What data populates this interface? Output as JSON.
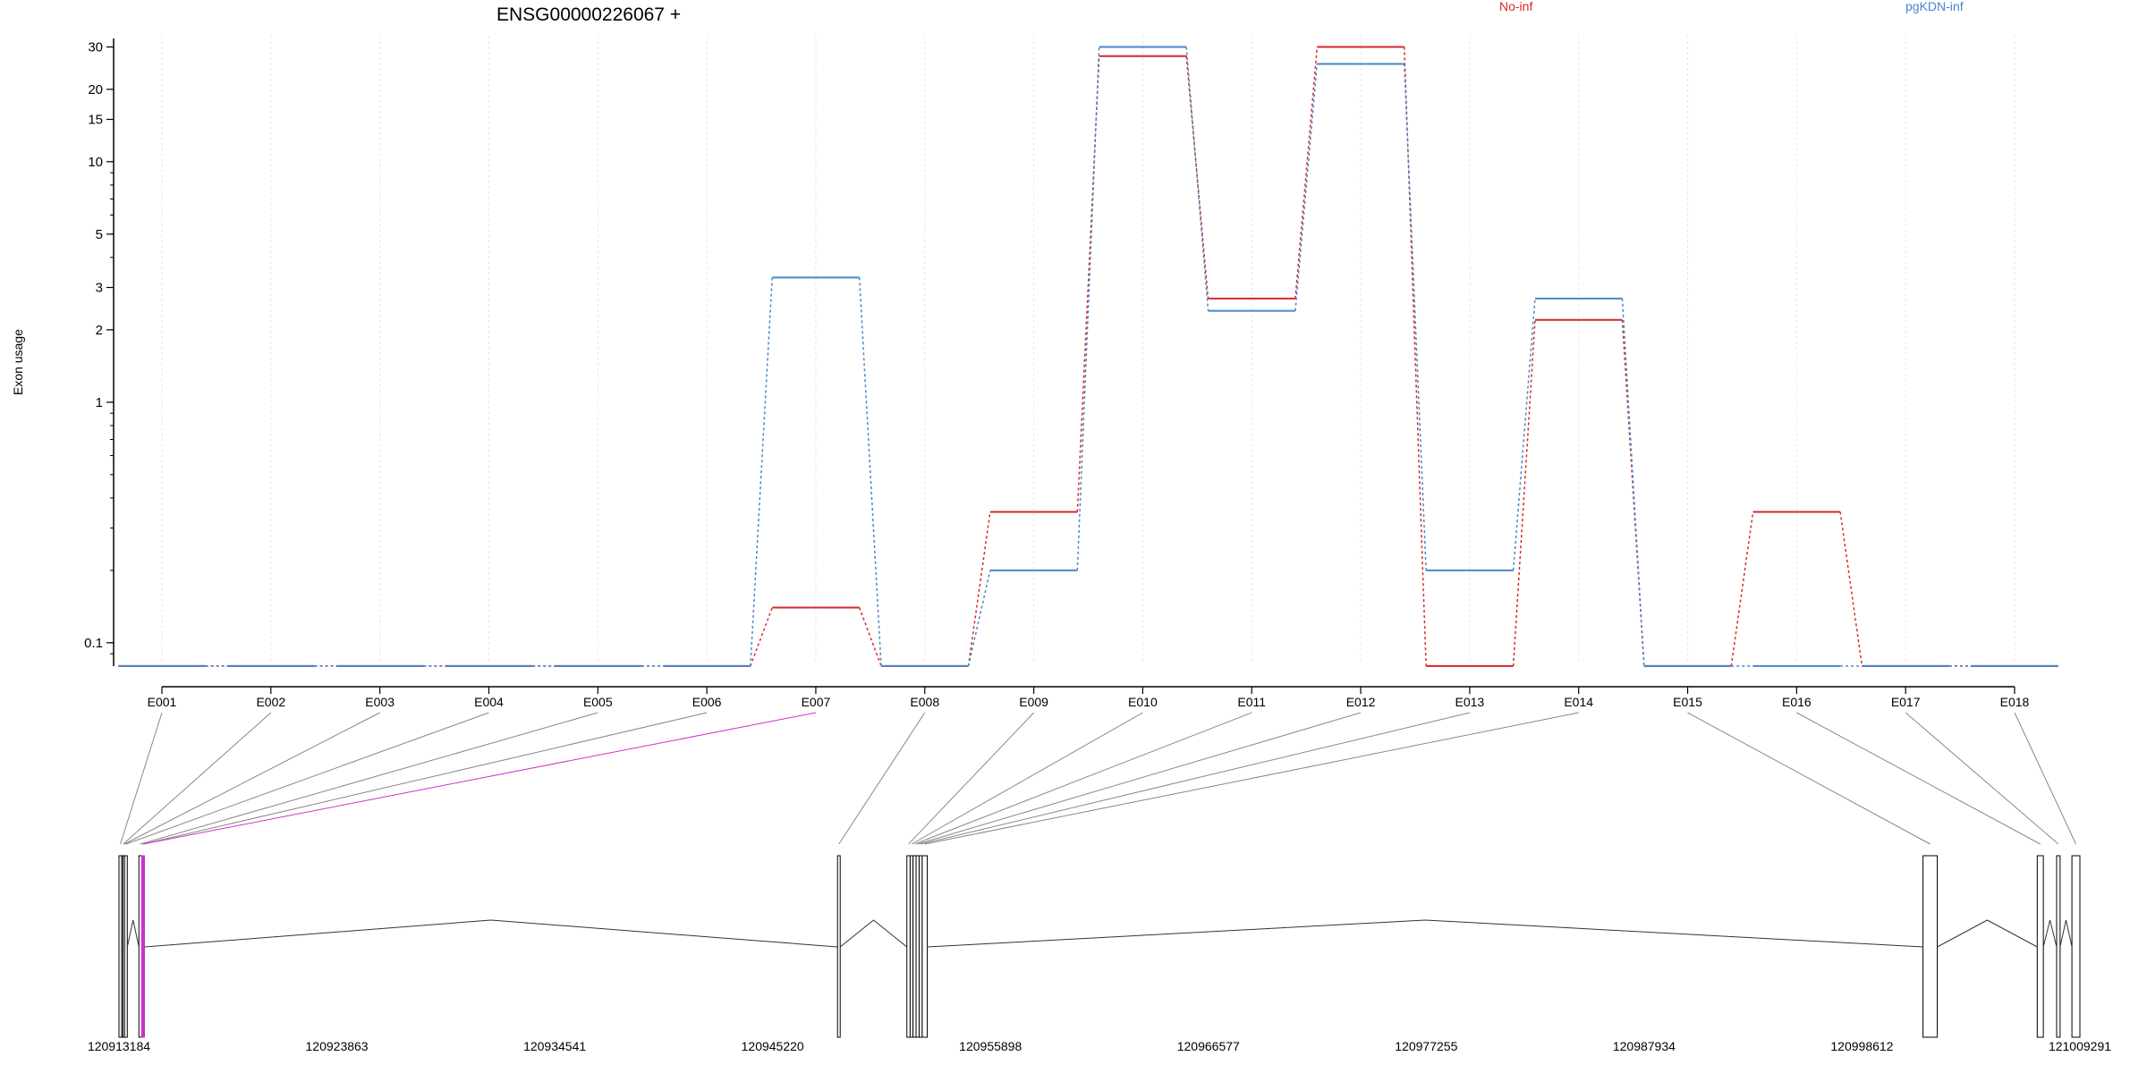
{
  "chart_data": {
    "type": "line",
    "title": "ENSG00000226067 +",
    "ylabel": "Exon usage",
    "xlabel": "",
    "y_scale": "log",
    "grid": true,
    "legend_position": "top-right",
    "legend": [
      {
        "label": "No-inf",
        "color": "#d62728"
      },
      {
        "label": "pgKDN-inf",
        "color": "#4a86c8"
      }
    ],
    "y_ticks": [
      "0.1",
      "1",
      "2",
      "3",
      "5",
      "10",
      "15",
      "20",
      "30"
    ],
    "y_tick_values": [
      0.1,
      1,
      2,
      3,
      5,
      10,
      15,
      20,
      30
    ],
    "ylim": [
      0.082,
      32
    ],
    "categories": [
      "E001",
      "E002",
      "E003",
      "E004",
      "E005",
      "E006",
      "E007",
      "E008",
      "E009",
      "E010",
      "E011",
      "E012",
      "E013",
      "E014",
      "E015",
      "E016",
      "E017",
      "E018"
    ],
    "series": [
      {
        "name": "No-inf",
        "color": "#d62728",
        "values": [
          0.08,
          0.08,
          0.08,
          0.08,
          0.08,
          0.08,
          0.14,
          0.08,
          0.35,
          27.5,
          2.7,
          30,
          0.08,
          2.2,
          0.08,
          0.35,
          0.08,
          0.08
        ]
      },
      {
        "name": "pgKDN-inf",
        "color": "#4a86c8",
        "values": [
          0.08,
          0.08,
          0.08,
          0.08,
          0.08,
          0.08,
          3.3,
          0.08,
          0.2,
          30,
          2.4,
          25.5,
          0.2,
          2.7,
          0.08,
          0.08,
          0.08,
          0.08
        ]
      }
    ],
    "genomic_axis": {
      "ticks": [
        "120913184",
        "120923863",
        "120934541",
        "120945220",
        "120955898",
        "120966577",
        "120977255",
        "120987934",
        "120998612",
        "121009291"
      ],
      "range": [
        120913184,
        121009291
      ]
    },
    "exon_coordinates": [
      {
        "id": "E001",
        "start": 120913184,
        "end": 120913320
      },
      {
        "id": "E002",
        "start": 120913320,
        "end": 120913380
      },
      {
        "id": "E003",
        "start": 120913380,
        "end": 120913460
      },
      {
        "id": "E004",
        "start": 120913460,
        "end": 120913530
      },
      {
        "id": "E005",
        "start": 120914160,
        "end": 120914300
      },
      {
        "id": "E006",
        "start": 120914300,
        "end": 120914380
      },
      {
        "id": "E007",
        "start": 120914300,
        "end": 120914420
      },
      {
        "id": "E008",
        "start": 120948400,
        "end": 120948520
      },
      {
        "id": "E009",
        "start": 120951800,
        "end": 120951960
      },
      {
        "id": "E010",
        "start": 120951960,
        "end": 120952100
      },
      {
        "id": "E011",
        "start": 120952100,
        "end": 120952250
      },
      {
        "id": "E012",
        "start": 120952250,
        "end": 120952400
      },
      {
        "id": "E013",
        "start": 120952400,
        "end": 120952550
      },
      {
        "id": "E014",
        "start": 120952550,
        "end": 120952800
      },
      {
        "id": "E015",
        "start": 121001600,
        "end": 121002300
      },
      {
        "id": "E016",
        "start": 121007200,
        "end": 121007500
      },
      {
        "id": "E017",
        "start": 121008150,
        "end": 121008320
      },
      {
        "id": "E018",
        "start": 121008900,
        "end": 121009291
      }
    ],
    "highlighted_exon": "E007",
    "highlight_color": "#cc33cc"
  }
}
